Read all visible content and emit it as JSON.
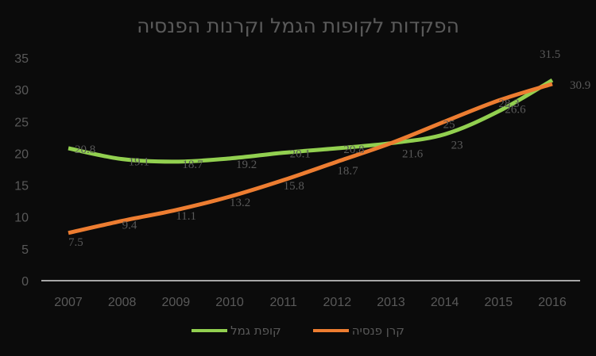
{
  "chart_data": {
    "type": "line",
    "title": "הפקדות לקופות הגמל וקרנות הפנסיה",
    "xlabel": "",
    "ylabel": "",
    "ylim": [
      0,
      35
    ],
    "yticks": [
      0,
      5,
      10,
      15,
      20,
      25,
      30,
      35
    ],
    "categories": [
      "2007",
      "2008",
      "2009",
      "2010",
      "2011",
      "2012",
      "2013",
      "2014",
      "2015",
      "2016"
    ],
    "grid": false,
    "legend_position": "bottom",
    "series": [
      {
        "name": "קופת גמל",
        "color": "#92D050",
        "values": [
          20.8,
          19.1,
          18.7,
          19.2,
          20.1,
          20.8,
          21.6,
          23,
          26.6,
          31.5
        ]
      },
      {
        "name": "קרן פנסיה",
        "color": "#ED7D31",
        "values": [
          7.5,
          9.4,
          11.1,
          13.2,
          15.8,
          18.7,
          21.6,
          25,
          28.3,
          30.9
        ]
      }
    ]
  },
  "legend": {
    "gemel": "קופת גמל",
    "pension": "קרן פנסיה"
  }
}
